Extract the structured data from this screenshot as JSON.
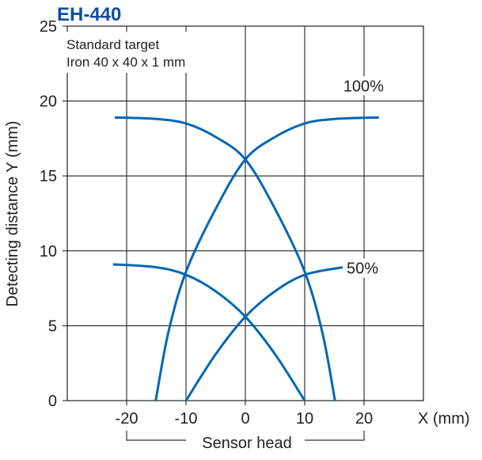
{
  "chart_data": {
    "type": "line",
    "title": "EH-440",
    "annotation_lines": [
      "Standard target",
      "Iron 40 x 40 x 1 mm"
    ],
    "xlabel": "X (mm)",
    "ylabel": "Detecting distance Y (mm)",
    "xlim": [
      -30,
      30
    ],
    "ylim": [
      0,
      25
    ],
    "xticks": [
      -20,
      -10,
      0,
      10,
      20
    ],
    "yticks": [
      0,
      5,
      10,
      15,
      20,
      25
    ],
    "grid": true,
    "bracket_label": "Sensor head",
    "bracket_range": [
      -20,
      20
    ],
    "colors": {
      "series": "#0068b3",
      "title": "#0d4fa0",
      "grid": "#222222"
    },
    "series": [
      {
        "name": "100%",
        "curves": [
          [
            [
              -22,
              18.9
            ],
            [
              -15,
              18.8
            ],
            [
              -10,
              18.5
            ],
            [
              -5,
              17.6
            ],
            [
              0,
              16.1
            ],
            [
              5,
              12.8
            ],
            [
              10,
              8.6
            ],
            [
              13,
              4.5
            ],
            [
              15.1,
              0
            ]
          ],
          [
            [
              -15.1,
              0
            ],
            [
              -13,
              4.5
            ],
            [
              -10,
              8.6
            ],
            [
              -5,
              12.8
            ],
            [
              0,
              16.1
            ],
            [
              5,
              17.6
            ],
            [
              10,
              18.5
            ],
            [
              15,
              18.8
            ],
            [
              22.5,
              18.9
            ]
          ]
        ]
      },
      {
        "name": "50%",
        "curves": [
          [
            [
              -22.3,
              9.1
            ],
            [
              -15,
              8.9
            ],
            [
              -10,
              8.4
            ],
            [
              -5,
              7.3
            ],
            [
              0,
              5.6
            ],
            [
              5,
              3.1
            ],
            [
              10,
              0
            ]
          ],
          [
            [
              -10,
              0
            ],
            [
              -5,
              3.1
            ],
            [
              0,
              5.6
            ],
            [
              5,
              7.3
            ],
            [
              10,
              8.4
            ],
            [
              16.4,
              8.9
            ]
          ]
        ]
      }
    ]
  }
}
